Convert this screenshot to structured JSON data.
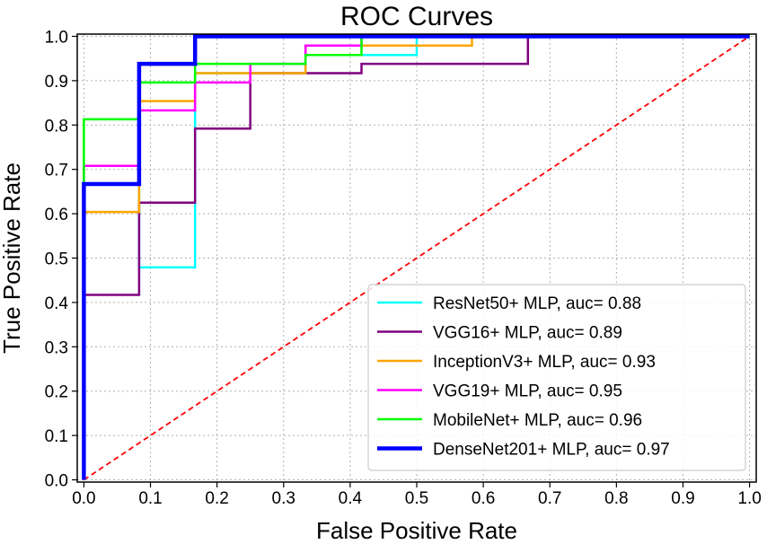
{
  "chart_data": {
    "type": "line",
    "title": "ROC Curves",
    "xlabel": "False Positive Rate",
    "ylabel": "True Positive Rate",
    "xlim": [
      -0.01,
      1.01
    ],
    "ylim": [
      -0.005,
      1.005
    ],
    "x_ticks": [
      "0.0",
      "0.1",
      "0.2",
      "0.3",
      "0.4",
      "0.5",
      "0.6",
      "0.7",
      "0.8",
      "0.9",
      "1.0"
    ],
    "y_ticks": [
      "0.0",
      "0.1",
      "0.2",
      "0.3",
      "0.4",
      "0.5",
      "0.6",
      "0.7",
      "0.8",
      "0.9",
      "1.0"
    ],
    "grid": true,
    "grid_style": "dotted",
    "legend_position": "lower-right",
    "diagonal": {
      "x": [
        0,
        1
      ],
      "y": [
        0,
        1
      ],
      "color": "#ff0000",
      "style": "dashed"
    },
    "series": [
      {
        "name": "ResNet50+ MLP, auc= 0.88",
        "color": "#00ffff",
        "x": [
          0,
          0,
          0.083,
          0.083,
          0.167,
          0.167,
          0.25,
          0.25,
          0.333,
          0.333,
          0.417,
          0.417,
          0.5,
          0.5,
          1
        ],
        "y": [
          0,
          0.667,
          0.667,
          0.479,
          0.479,
          0.917,
          0.917,
          0.917,
          0.917,
          0.958,
          0.958,
          0.958,
          0.958,
          1,
          1
        ]
      },
      {
        "name": "VGG16+ MLP, auc= 0.89",
        "color": "#800080",
        "x": [
          0,
          0,
          0.083,
          0.083,
          0.167,
          0.167,
          0.25,
          0.25,
          0.417,
          0.417,
          0.667,
          0.667,
          1
        ],
        "y": [
          0,
          0.417,
          0.417,
          0.625,
          0.625,
          0.792,
          0.792,
          0.917,
          0.917,
          0.938,
          0.938,
          1,
          1
        ]
      },
      {
        "name": "InceptionV3+ MLP, auc= 0.93",
        "color": "#ffa500",
        "x": [
          0,
          0,
          0.083,
          0.083,
          0.167,
          0.167,
          0.333,
          0.333,
          0.583,
          0.583,
          1
        ],
        "y": [
          0,
          0.604,
          0.604,
          0.854,
          0.854,
          0.917,
          0.917,
          0.979,
          0.979,
          1,
          1
        ]
      },
      {
        "name": "VGG19+ MLP, auc= 0.95",
        "color": "#ff00ff",
        "x": [
          0,
          0,
          0.083,
          0.083,
          0.167,
          0.167,
          0.25,
          0.25,
          0.333,
          0.333,
          0.417,
          0.417,
          1
        ],
        "y": [
          0,
          0.708,
          0.708,
          0.833,
          0.833,
          0.896,
          0.896,
          0.938,
          0.938,
          0.979,
          0.979,
          1,
          1
        ]
      },
      {
        "name": "MobileNet+ MLP, auc= 0.96",
        "color": "#00ff00",
        "x": [
          0,
          0,
          0.083,
          0.083,
          0.167,
          0.167,
          0.333,
          0.333,
          0.417,
          0.417,
          1
        ],
        "y": [
          0,
          0.813,
          0.813,
          0.896,
          0.896,
          0.938,
          0.938,
          0.958,
          0.958,
          1,
          1
        ]
      },
      {
        "name": "DenseNet201+ MLP, auc= 0.97",
        "color": "#0000ff",
        "x": [
          0,
          0,
          0.083,
          0.083,
          0.167,
          0.167,
          1
        ],
        "y": [
          0,
          0.667,
          0.667,
          0.938,
          0.938,
          1,
          1
        ]
      }
    ]
  }
}
